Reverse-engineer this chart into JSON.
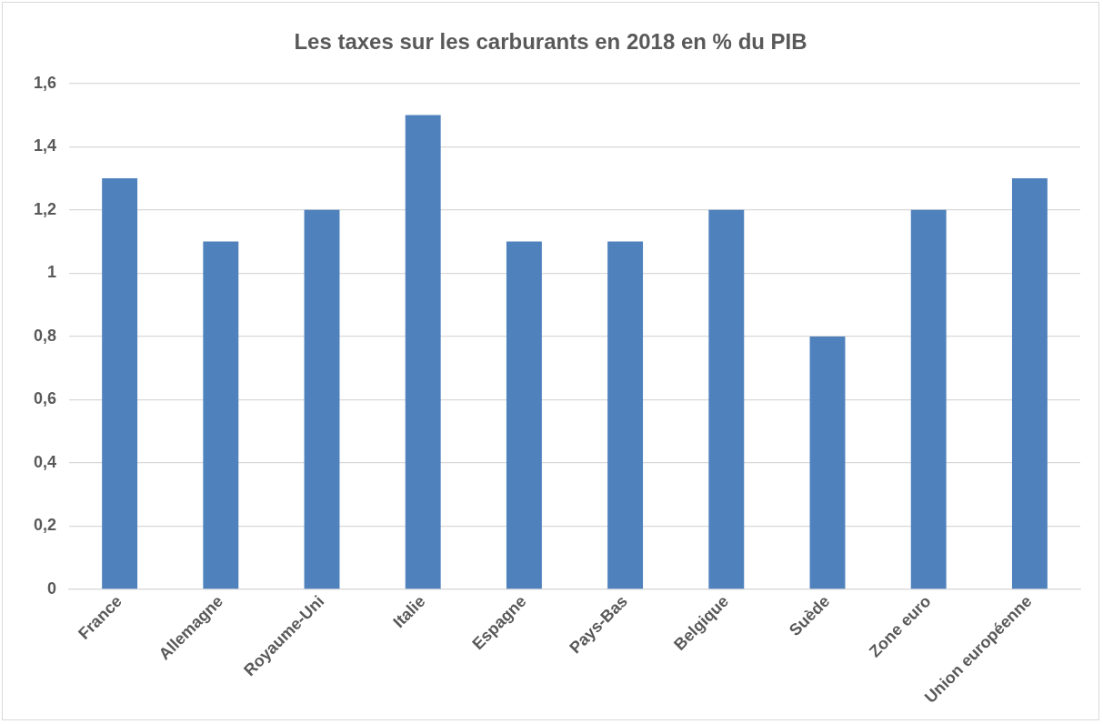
{
  "chart_data": {
    "type": "bar",
    "title": "Les taxes sur les carburants en 2018 en % du PIB",
    "categories": [
      "France",
      "Allemagne",
      "Royaume-Uni",
      "Italie",
      "Espagne",
      "Pays-Bas",
      "Belgique",
      "Suède",
      "Zone euro",
      "Union européenne"
    ],
    "values": [
      1.3,
      1.1,
      1.2,
      1.5,
      1.1,
      1.1,
      1.2,
      0.8,
      1.2,
      1.3
    ],
    "color": "#4f81bd",
    "ylim": [
      0,
      1.6
    ],
    "yticks": [
      0,
      {
        "value": 0.2,
        "label": "0,2"
      },
      {
        "value": 0.4,
        "label": "0,4"
      },
      {
        "value": 0.6,
        "label": "0,6"
      },
      {
        "value": 0.8,
        "label": "0,8"
      },
      1,
      {
        "value": 1.2,
        "label": "1,2"
      },
      {
        "value": 1.4,
        "label": "1,4"
      },
      {
        "value": 1.6,
        "label": "1,6"
      }
    ],
    "grid": "y",
    "legend": false
  }
}
